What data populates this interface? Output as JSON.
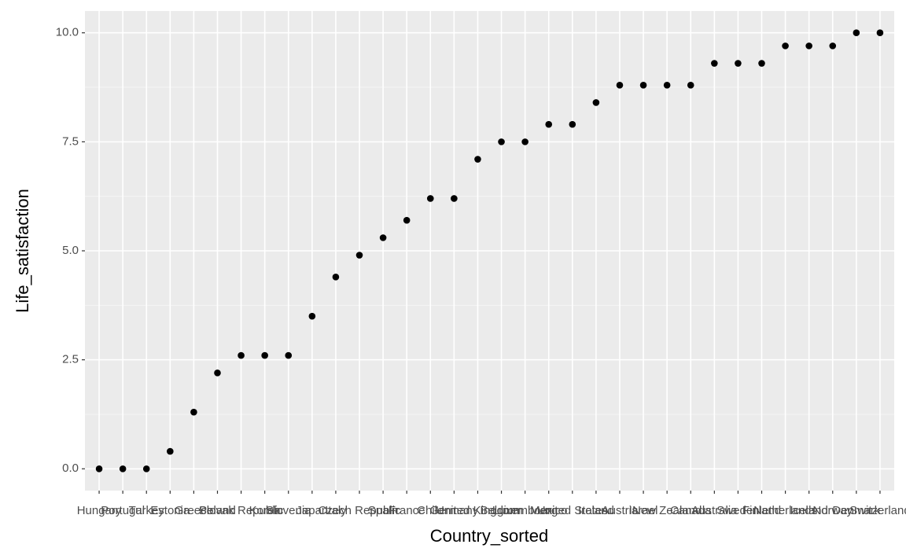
{
  "chart_data": {
    "type": "scatter",
    "x_label": "Country_sorted",
    "y_label": "Life_satisfaction",
    "categories": [
      "Hungary",
      "Portugal",
      "Turkey",
      "Estonia",
      "Greece",
      "Poland",
      "Slovak Republic",
      "Korea",
      "Slovenia",
      "Japan",
      "Italy",
      "Czech Republic",
      "Spain",
      "France",
      "Chile",
      "Germany",
      "United Kingdom",
      "Belgium",
      "Luxembourg",
      "Mexico",
      "United States",
      "Ireland",
      "Austria",
      "Israel",
      "New Zealand",
      "Canada",
      "Australia",
      "Sweden",
      "Finland",
      "Netherlands",
      "Iceland",
      "Norway",
      "Denmark",
      "Switzerland"
    ],
    "values": [
      0,
      0,
      0,
      0.4,
      1.3,
      2.2,
      2.6,
      2.6,
      2.6,
      3.5,
      4.4,
      4.9,
      5.3,
      5.7,
      6.2,
      6.2,
      7.1,
      7.5,
      7.5,
      7.9,
      7.9,
      8.4,
      8.8,
      8.8,
      8.8,
      8.8,
      9.3,
      9.3,
      9.3,
      9.7,
      9.7,
      9.7,
      10,
      10
    ],
    "color": "#000000",
    "ylim": [
      -0.5,
      10.5
    ],
    "yticks": [
      {
        "value": 0,
        "label": "0.0"
      },
      {
        "value": 2.5,
        "label": "2.5"
      },
      {
        "value": 5,
        "label": "5.0"
      },
      {
        "value": 7.5,
        "label": "7.5"
      },
      {
        "value": 10,
        "label": "10.0"
      }
    ],
    "grid": true
  }
}
